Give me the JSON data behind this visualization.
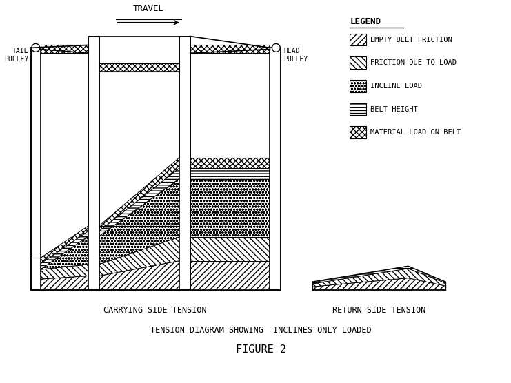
{
  "title": "TENSION DIAGRAM SHOWING  INCLINES ONLY LOADED",
  "figure_label": "FIGURE 2",
  "carrying_label": "CARRYING SIDE TENSION",
  "return_label": "RETURN SIDE TENSION",
  "travel_label": "TRAVEL",
  "tail_pulley_label": "TAIL\nPULLEY",
  "head_pulley_label": "HEAD\nPULLEY",
  "legend_title": "LEGEND",
  "legend_items": [
    "EMPTY BELT FRICTION",
    "FRICTION DUE TO LOAD",
    "INCLINE LOAD",
    "BELT HEIGHT",
    "MATERIAL LOAD ON BELT"
  ],
  "bg_color": "#ffffff",
  "line_color": "#000000",
  "hatch_ebf": "////",
  "hatch_fdl": "\\\\\\\\",
  "hatch_il": "oooo",
  "hatch_bh": "----",
  "hatch_ml": "xxxx",
  "hatch_belt": "xx"
}
